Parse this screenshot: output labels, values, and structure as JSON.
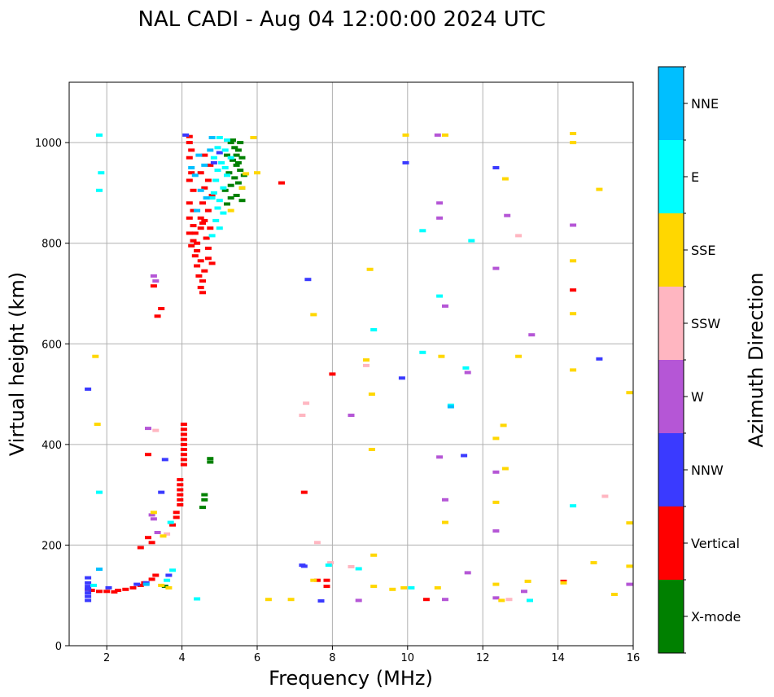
{
  "chart_data": {
    "type": "scatter",
    "title": "NAL CADI - Aug 04 12:00:00 2024 UTC",
    "xlabel": "Frequency (MHz)",
    "ylabel": "Virtual height (km)",
    "xlim": [
      1,
      16
    ],
    "ylim": [
      0,
      1120
    ],
    "xticks": [
      2,
      4,
      6,
      8,
      10,
      12,
      14,
      16
    ],
    "yticks": [
      0,
      200,
      400,
      600,
      800,
      1000
    ],
    "grid": true,
    "colorbar": {
      "label": "Azimuth Direction",
      "categories": [
        "X-mode",
        "Vertical",
        "NNW",
        "W",
        "SSW",
        "SSE",
        "E",
        "NNE"
      ],
      "colors": [
        "#008000",
        "#ff0000",
        "#3a3aff",
        "#b556d6",
        "#ffb6c1",
        "#ffd700",
        "#00ffff",
        "#00bfff"
      ]
    },
    "series": [
      {
        "name": "X-mode",
        "points": [
          [
            4.75,
            365
          ],
          [
            4.75,
            372
          ],
          [
            4.6,
            300
          ],
          [
            4.6,
            290
          ],
          [
            4.55,
            275
          ],
          [
            3.55,
            118
          ],
          [
            5.3,
            1000
          ],
          [
            5.4,
            990
          ],
          [
            5.5,
            985
          ],
          [
            5.2,
            975
          ],
          [
            5.35,
            965
          ],
          [
            5.45,
            955
          ],
          [
            5.55,
            945
          ],
          [
            5.25,
            940
          ],
          [
            5.4,
            930
          ],
          [
            5.5,
            920
          ],
          [
            5.3,
            915
          ],
          [
            5.6,
            910
          ],
          [
            5.15,
            905
          ],
          [
            5.45,
            895
          ],
          [
            5.3,
            890
          ],
          [
            5.6,
            885
          ],
          [
            5.2,
            878
          ],
          [
            5.5,
            960
          ],
          [
            5.6,
            970
          ],
          [
            5.35,
            1005
          ],
          [
            5.55,
            1000
          ],
          [
            5.45,
            975
          ],
          [
            5.65,
            935
          ]
        ]
      },
      {
        "name": "Vertical",
        "points": [
          [
            4.05,
            440
          ],
          [
            4.05,
            430
          ],
          [
            4.05,
            420
          ],
          [
            4.05,
            410
          ],
          [
            4.05,
            400
          ],
          [
            4.05,
            390
          ],
          [
            4.05,
            380
          ],
          [
            4.05,
            370
          ],
          [
            4.05,
            360
          ],
          [
            3.95,
            330
          ],
          [
            3.95,
            320
          ],
          [
            3.95,
            310
          ],
          [
            3.95,
            300
          ],
          [
            3.95,
            290
          ],
          [
            3.95,
            280
          ],
          [
            3.85,
            265
          ],
          [
            3.85,
            255
          ],
          [
            3.75,
            240
          ],
          [
            3.1,
            215
          ],
          [
            3.2,
            205
          ],
          [
            2.9,
            195
          ],
          [
            3.3,
            140
          ],
          [
            3.2,
            132
          ],
          [
            3.0,
            125
          ],
          [
            2.9,
            120
          ],
          [
            2.7,
            115
          ],
          [
            2.5,
            112
          ],
          [
            2.3,
            110
          ],
          [
            2.2,
            107
          ],
          [
            2.0,
            108
          ],
          [
            1.8,
            108
          ],
          [
            1.6,
            110
          ],
          [
            1.5,
            112
          ],
          [
            3.35,
            655
          ],
          [
            3.45,
            670
          ],
          [
            3.25,
            715
          ],
          [
            3.1,
            380
          ],
          [
            4.2,
            1012
          ],
          [
            4.2,
            1000
          ],
          [
            4.25,
            985
          ],
          [
            4.2,
            970
          ],
          [
            4.25,
            940
          ],
          [
            4.2,
            925
          ],
          [
            4.3,
            905
          ],
          [
            4.2,
            880
          ],
          [
            4.3,
            865
          ],
          [
            4.2,
            850
          ],
          [
            4.3,
            835
          ],
          [
            4.2,
            820
          ],
          [
            4.3,
            805
          ],
          [
            4.25,
            795
          ],
          [
            4.4,
            785
          ],
          [
            4.35,
            775
          ],
          [
            4.5,
            765
          ],
          [
            4.4,
            755
          ],
          [
            4.6,
            745
          ],
          [
            4.45,
            735
          ],
          [
            4.55,
            725
          ],
          [
            4.5,
            712
          ],
          [
            4.55,
            702
          ],
          [
            4.7,
            790
          ],
          [
            4.65,
            810
          ],
          [
            4.5,
            830
          ],
          [
            4.6,
            845
          ],
          [
            4.7,
            865
          ],
          [
            4.55,
            880
          ],
          [
            4.8,
            895
          ],
          [
            4.6,
            910
          ],
          [
            4.7,
            925
          ],
          [
            4.5,
            940
          ],
          [
            4.75,
            955
          ],
          [
            4.6,
            975
          ],
          [
            4.5,
            850
          ],
          [
            4.75,
            830
          ],
          [
            4.8,
            760
          ],
          [
            4.7,
            770
          ],
          [
            4.4,
            800
          ],
          [
            4.35,
            820
          ],
          [
            4.55,
            840
          ],
          [
            6.65,
            920
          ],
          [
            7.25,
            305
          ],
          [
            7.6,
            130
          ],
          [
            7.85,
            130
          ],
          [
            7.85,
            118
          ],
          [
            8.0,
            540
          ],
          [
            10.5,
            92
          ],
          [
            14.15,
            128
          ],
          [
            14.4,
            707
          ]
        ]
      },
      {
        "name": "NNW",
        "points": [
          [
            1.5,
            135
          ],
          [
            1.5,
            125
          ],
          [
            1.5,
            118
          ],
          [
            1.5,
            112
          ],
          [
            1.5,
            105
          ],
          [
            1.5,
            98
          ],
          [
            1.5,
            90
          ],
          [
            1.5,
            510
          ],
          [
            2.05,
            115
          ],
          [
            2.8,
            122
          ],
          [
            3.05,
            125
          ],
          [
            3.45,
            305
          ],
          [
            3.55,
            370
          ],
          [
            3.65,
            140
          ],
          [
            4.1,
            1015
          ],
          [
            4.85,
            960
          ],
          [
            5.0,
            980
          ],
          [
            7.25,
            158
          ],
          [
            7.2,
            160
          ],
          [
            7.35,
            728
          ],
          [
            7.7,
            89
          ],
          [
            9.85,
            532
          ],
          [
            9.95,
            960
          ],
          [
            11.5,
            378
          ],
          [
            12.35,
            950
          ],
          [
            15.1,
            570
          ]
        ]
      },
      {
        "name": "W",
        "points": [
          [
            3.2,
            260
          ],
          [
            3.25,
            252
          ],
          [
            3.1,
            432
          ],
          [
            3.35,
            225
          ],
          [
            3.25,
            735
          ],
          [
            3.3,
            725
          ],
          [
            8.5,
            458
          ],
          [
            8.7,
            90
          ],
          [
            10.8,
            1015
          ],
          [
            10.85,
            880
          ],
          [
            10.85,
            850
          ],
          [
            11.0,
            675
          ],
          [
            10.85,
            375
          ],
          [
            11.0,
            290
          ],
          [
            11.0,
            92
          ],
          [
            11.6,
            543
          ],
          [
            11.6,
            145
          ],
          [
            12.35,
            750
          ],
          [
            12.35,
            345
          ],
          [
            12.35,
            228
          ],
          [
            12.35,
            95
          ],
          [
            12.65,
            855
          ],
          [
            13.1,
            108
          ],
          [
            13.3,
            618
          ],
          [
            14.4,
            836
          ],
          [
            15.9,
            122
          ]
        ]
      },
      {
        "name": "SSW",
        "points": [
          [
            3.3,
            428
          ],
          [
            3.6,
            222
          ],
          [
            7.3,
            482
          ],
          [
            7.2,
            458
          ],
          [
            7.6,
            205
          ],
          [
            7.95,
            165
          ],
          [
            8.5,
            157
          ],
          [
            8.9,
            557
          ],
          [
            12.7,
            92
          ],
          [
            12.95,
            815
          ],
          [
            15.25,
            297
          ]
        ]
      },
      {
        "name": "SSE",
        "points": [
          [
            1.7,
            575
          ],
          [
            1.75,
            440
          ],
          [
            3.25,
            265
          ],
          [
            3.5,
            218
          ],
          [
            3.45,
            120
          ],
          [
            3.65,
            115
          ],
          [
            5.3,
            865
          ],
          [
            5.6,
            910
          ],
          [
            5.7,
            938
          ],
          [
            5.9,
            1010
          ],
          [
            6.0,
            940
          ],
          [
            6.3,
            92
          ],
          [
            6.9,
            92
          ],
          [
            7.5,
            658
          ],
          [
            7.5,
            130
          ],
          [
            9.0,
            748
          ],
          [
            8.9,
            568
          ],
          [
            9.05,
            500
          ],
          [
            9.05,
            390
          ],
          [
            9.1,
            180
          ],
          [
            9.1,
            118
          ],
          [
            9.6,
            112
          ],
          [
            9.9,
            115
          ],
          [
            9.95,
            1015
          ],
          [
            10.9,
            575
          ],
          [
            10.8,
            115
          ],
          [
            11.0,
            1015
          ],
          [
            11.0,
            245
          ],
          [
            12.35,
            412
          ],
          [
            12.35,
            285
          ],
          [
            12.35,
            122
          ],
          [
            12.55,
            438
          ],
          [
            12.6,
            928
          ],
          [
            12.6,
            352
          ],
          [
            12.5,
            90
          ],
          [
            12.95,
            575
          ],
          [
            13.2,
            128
          ],
          [
            14.15,
            125
          ],
          [
            14.4,
            1000
          ],
          [
            14.4,
            765
          ],
          [
            14.4,
            660
          ],
          [
            14.4,
            548
          ],
          [
            14.4,
            1018
          ],
          [
            14.95,
            165
          ],
          [
            15.1,
            907
          ],
          [
            15.5,
            102
          ],
          [
            15.9,
            503
          ],
          [
            15.9,
            244
          ],
          [
            15.9,
            158
          ]
        ]
      },
      {
        "name": "E",
        "points": [
          [
            1.8,
            1015
          ],
          [
            1.85,
            940
          ],
          [
            1.8,
            905
          ],
          [
            1.8,
            305
          ],
          [
            1.65,
            120
          ],
          [
            3.6,
            130
          ],
          [
            3.75,
            150
          ],
          [
            3.7,
            245
          ],
          [
            4.4,
            93
          ],
          [
            5.0,
            1010
          ],
          [
            5.2,
            1005
          ],
          [
            4.95,
            990
          ],
          [
            5.15,
            985
          ],
          [
            4.85,
            970
          ],
          [
            5.05,
            960
          ],
          [
            4.95,
            945
          ],
          [
            5.2,
            935
          ],
          [
            4.9,
            925
          ],
          [
            5.1,
            910
          ],
          [
            4.85,
            900
          ],
          [
            5.0,
            885
          ],
          [
            4.95,
            870
          ],
          [
            5.1,
            860
          ],
          [
            4.9,
            845
          ],
          [
            5.0,
            830
          ],
          [
            4.8,
            815
          ],
          [
            5.15,
            950
          ],
          [
            5.3,
            970
          ],
          [
            4.8,
            890
          ],
          [
            9.1,
            628
          ],
          [
            10.1,
            115
          ],
          [
            10.4,
            583
          ],
          [
            10.4,
            825
          ],
          [
            10.85,
            695
          ],
          [
            11.15,
            478
          ],
          [
            11.55,
            552
          ],
          [
            11.7,
            805
          ],
          [
            8.7,
            153
          ],
          [
            7.9,
            160
          ],
          [
            13.25,
            90
          ],
          [
            14.4,
            278
          ]
        ]
      },
      {
        "name": "NNE",
        "points": [
          [
            4.45,
            975
          ],
          [
            4.6,
            955
          ],
          [
            4.35,
            935
          ],
          [
            4.5,
            905
          ],
          [
            4.65,
            890
          ],
          [
            4.4,
            865
          ],
          [
            4.75,
            985
          ],
          [
            4.25,
            950
          ],
          [
            4.8,
            1010
          ],
          [
            1.8,
            152
          ],
          [
            3.05,
            122
          ],
          [
            11.15,
            475
          ]
        ]
      }
    ]
  }
}
